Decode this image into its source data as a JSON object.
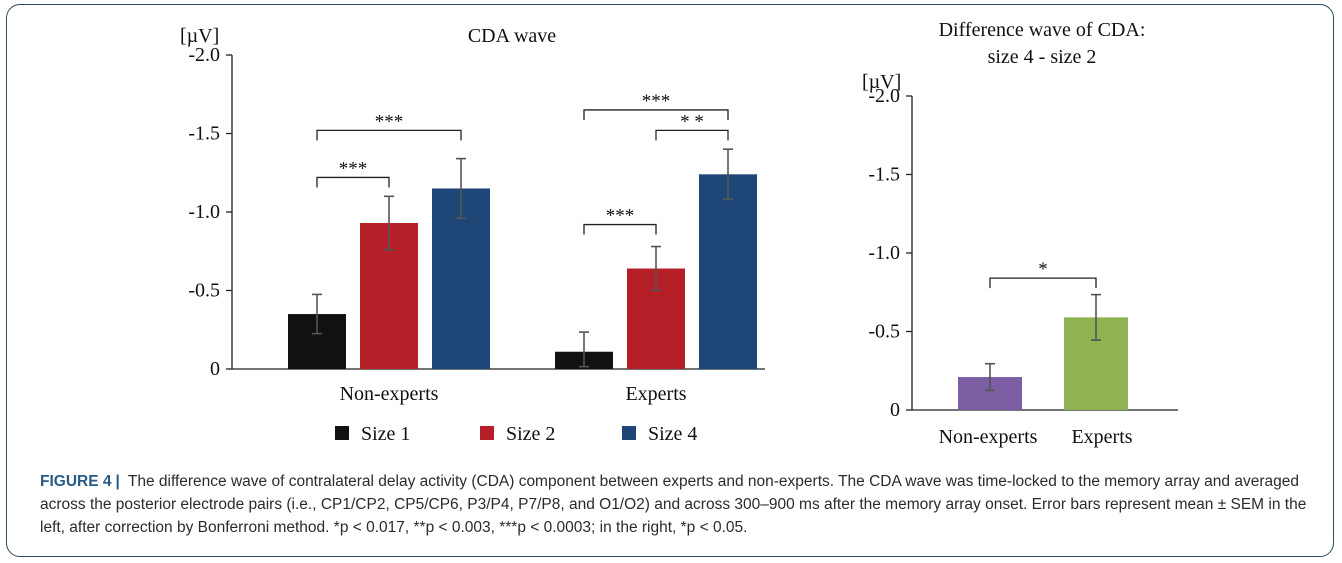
{
  "chart_data": [
    {
      "type": "bar",
      "title": "CDA wave",
      "ylabel": "[µV]",
      "ylim": [
        0,
        -2.0
      ],
      "yticks": [
        {
          "value": 0,
          "label": "0"
        },
        {
          "value": -0.5,
          "label": "-0.5"
        },
        {
          "value": -1.0,
          "label": "-1.0"
        },
        {
          "value": -1.5,
          "label": "-1.5"
        },
        {
          "value": -2.0,
          "label": "-2.0"
        }
      ],
      "categories": [
        "Non-experts",
        "Experts"
      ],
      "series": [
        {
          "name": "Size 1",
          "color": "#111111",
          "values": [
            -0.35,
            -0.11
          ],
          "errors": [
            0.125,
            0.125
          ]
        },
        {
          "name": "Size 2",
          "color": "#b51f28",
          "values": [
            -0.93,
            -0.64
          ],
          "errors": [
            0.17,
            0.14
          ]
        },
        {
          "name": "Size 4",
          "color": "#1e4677",
          "values": [
            -1.15,
            -1.24
          ],
          "errors": [
            0.19,
            0.16
          ]
        }
      ],
      "legend": {
        "placement": "bottom"
      },
      "significance": [
        {
          "category": 0,
          "from_series": 0,
          "to_series": 1,
          "label": "***",
          "at": -1.22
        },
        {
          "category": 0,
          "from_series": 0,
          "to_series": 2,
          "label": "***",
          "at": -1.52
        },
        {
          "category": 1,
          "from_series": 0,
          "to_series": 1,
          "label": "***",
          "at": -0.92
        },
        {
          "category": 1,
          "from_series": 1,
          "to_series": 2,
          "label": "* *",
          "at": -1.52
        },
        {
          "category": 1,
          "from_series": 0,
          "to_series": 2,
          "label": "***",
          "at": -1.65
        }
      ]
    },
    {
      "type": "bar",
      "title": "Difference wave of CDA:",
      "subtitle": "size 4 - size 2",
      "ylabel": "[µV]",
      "ylim": [
        0,
        -2.0
      ],
      "yticks": [
        {
          "value": 0,
          "label": "0"
        },
        {
          "value": -0.5,
          "label": "-0.5"
        },
        {
          "value": -1.0,
          "label": "-1.0"
        },
        {
          "value": -1.5,
          "label": "-1.5"
        },
        {
          "value": -2.0,
          "label": "-2.0"
        }
      ],
      "categories": [
        "Non-experts",
        "Experts"
      ],
      "values": [
        -0.21,
        -0.59
      ],
      "errors": [
        0.085,
        0.145
      ],
      "colors": [
        "#7b5ea3",
        "#8fb253"
      ],
      "significance": [
        {
          "from": 0,
          "to": 1,
          "label": "*",
          "at": -0.84
        }
      ]
    }
  ],
  "caption": {
    "label": "FIGURE 4",
    "separator": "|",
    "text": "The difference wave of contralateral delay activity (CDA) component between experts and non-experts. The CDA wave was time-locked to the memory array and averaged across the posterior electrode pairs (i.e., CP1/CP2, CP5/CP6, P3/P4, P7/P8, and O1/O2) and across 300–900 ms after the memory array onset. Error bars represent mean ± SEM in the left, after correction by Bonferroni method. *p < 0.017, **p < 0.003, ***p < 0.0003; in the right, *p < 0.05."
  }
}
